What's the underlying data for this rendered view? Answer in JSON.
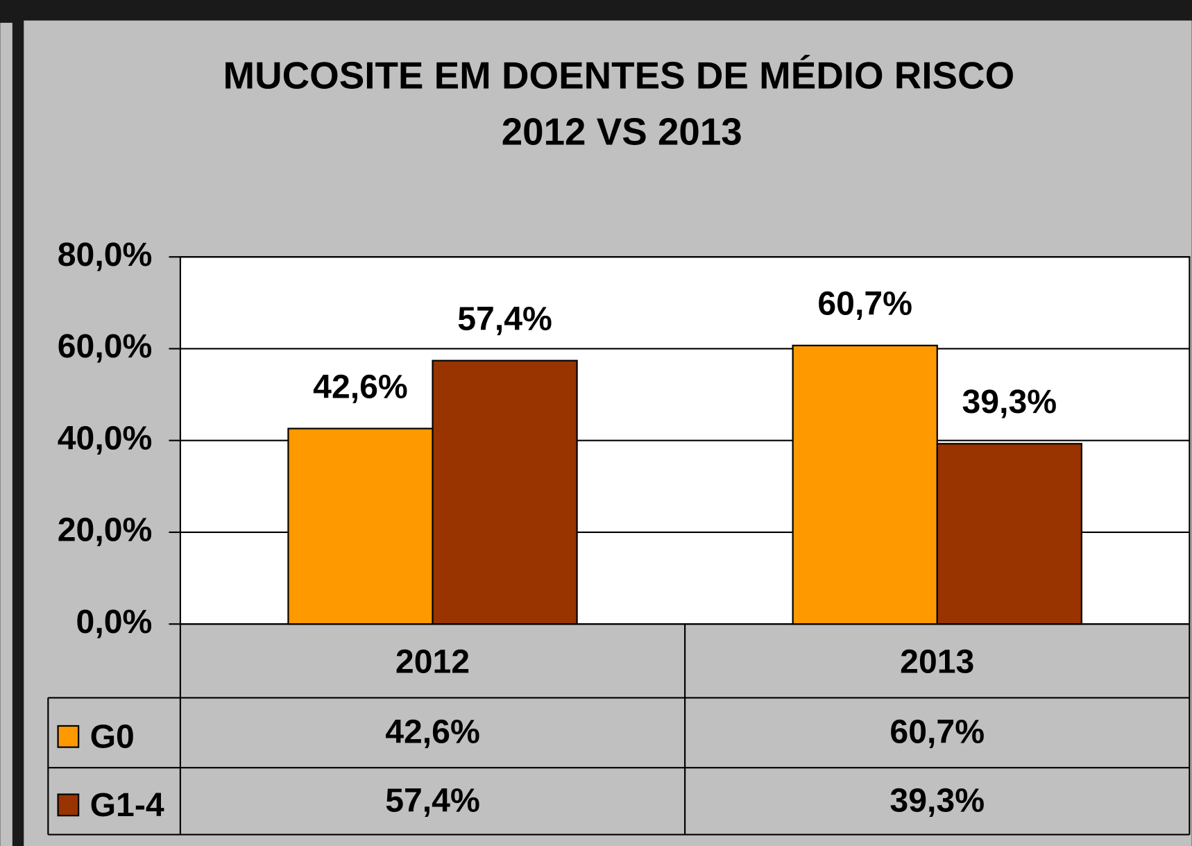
{
  "chart_data": {
    "type": "bar",
    "title": [
      "MUCOSITE EM DOENTES DE MÉDIO RISCO",
      "2012 VS 2013"
    ],
    "categories": [
      "2012",
      "2013"
    ],
    "series": [
      {
        "name": "G0",
        "color": "#ff9900",
        "values": [
          42.6,
          60.7
        ],
        "value_labels": [
          "42,6%",
          "60,7%"
        ]
      },
      {
        "name": "G1-4",
        "color": "#993300",
        "values": [
          57.4,
          39.3
        ],
        "value_labels": [
          "57,4%",
          "39,3%"
        ]
      }
    ],
    "ylim": [
      0,
      80
    ],
    "yticks": [
      {
        "value": 0,
        "label": "0,0%"
      },
      {
        "value": 20,
        "label": "20,0%"
      },
      {
        "value": 40,
        "label": "40,0%"
      },
      {
        "value": 60,
        "label": "60,0%"
      },
      {
        "value": 80,
        "label": "80,0%"
      }
    ],
    "grid": true,
    "data_table": true
  }
}
